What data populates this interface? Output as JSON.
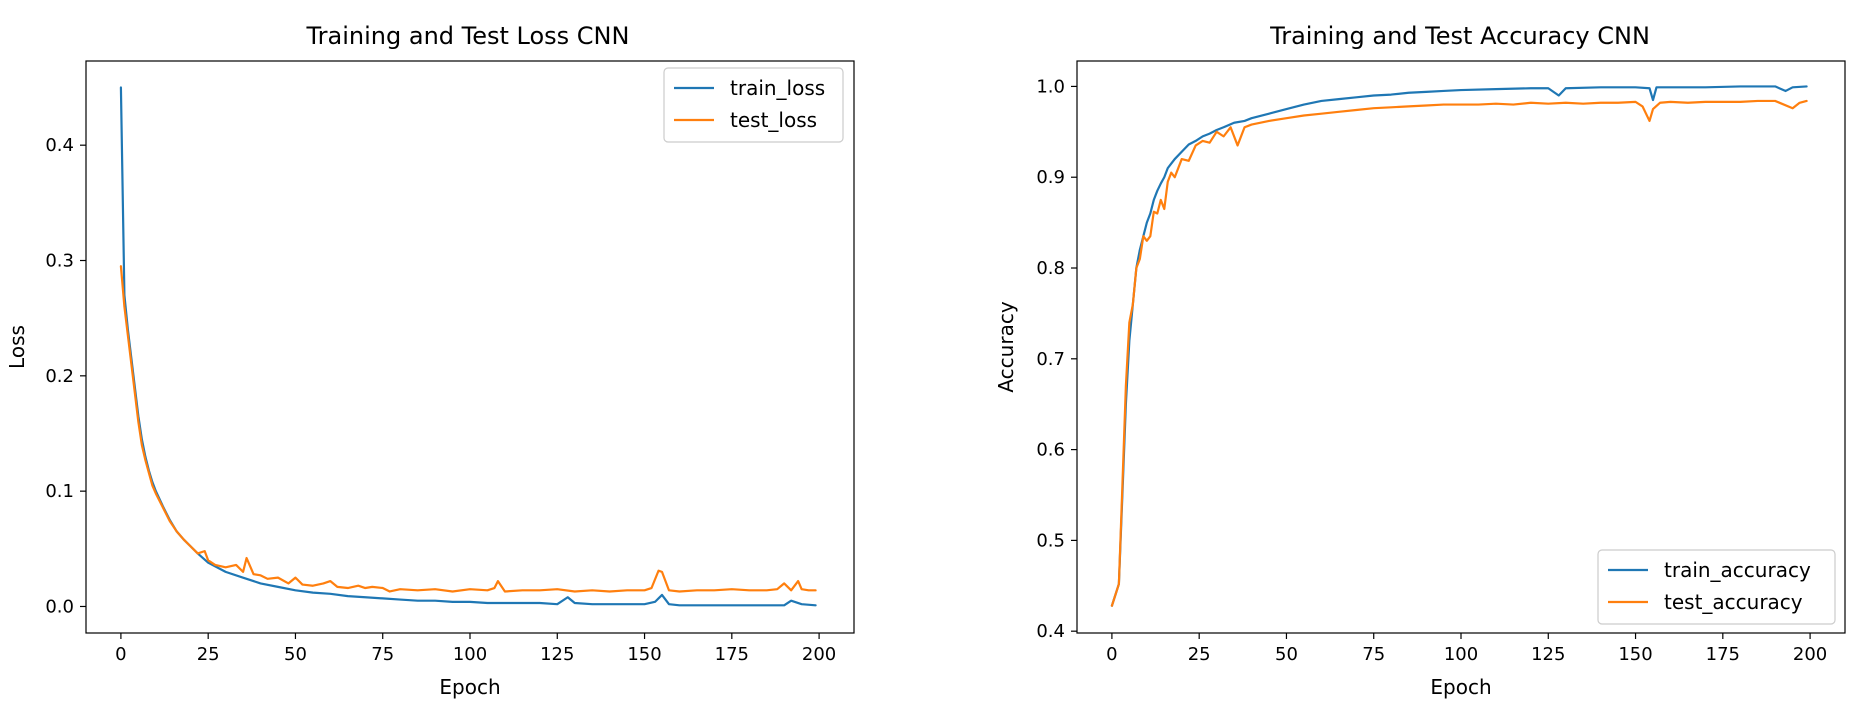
{
  "chart_data": [
    {
      "type": "line",
      "title": "Training and Test Loss CNN",
      "xlabel": "Epoch",
      "ylabel": "Loss",
      "xlim": [
        -10,
        210
      ],
      "ylim": [
        -0.023,
        0.473
      ],
      "xticks": [
        0,
        25,
        50,
        75,
        100,
        125,
        150,
        175,
        200
      ],
      "xtick_labels": [
        "0",
        "25",
        "50",
        "75",
        "100",
        "125",
        "150",
        "175",
        "200"
      ],
      "yticks": [
        0.0,
        0.1,
        0.2,
        0.3,
        0.4
      ],
      "ytick_labels": [
        "0.0",
        "0.1",
        "0.2",
        "0.3",
        "0.4"
      ],
      "grid": false,
      "legend_position": "upper-right",
      "series": [
        {
          "name": "train_loss",
          "color": "#1f77b4",
          "x": [
            0,
            1,
            2,
            3,
            4,
            5,
            6,
            7,
            8,
            9,
            10,
            12,
            14,
            16,
            18,
            20,
            22,
            25,
            30,
            35,
            40,
            45,
            50,
            55,
            60,
            65,
            70,
            75,
            80,
            85,
            90,
            95,
            100,
            105,
            110,
            115,
            120,
            125,
            128,
            130,
            135,
            140,
            145,
            150,
            153,
            155,
            157,
            160,
            165,
            170,
            175,
            180,
            185,
            190,
            192,
            195,
            199
          ],
          "values": [
            0.45,
            0.27,
            0.24,
            0.215,
            0.19,
            0.165,
            0.145,
            0.13,
            0.118,
            0.108,
            0.1,
            0.087,
            0.075,
            0.065,
            0.058,
            0.052,
            0.046,
            0.038,
            0.03,
            0.025,
            0.02,
            0.017,
            0.014,
            0.012,
            0.011,
            0.009,
            0.008,
            0.007,
            0.006,
            0.005,
            0.005,
            0.004,
            0.004,
            0.003,
            0.003,
            0.003,
            0.003,
            0.002,
            0.008,
            0.003,
            0.002,
            0.002,
            0.002,
            0.002,
            0.004,
            0.01,
            0.002,
            0.001,
            0.001,
            0.001,
            0.001,
            0.001,
            0.001,
            0.001,
            0.005,
            0.002,
            0.001
          ]
        },
        {
          "name": "test_loss",
          "color": "#ff7f0e",
          "x": [
            0,
            1,
            2,
            3,
            4,
            5,
            6,
            7,
            8,
            9,
            10,
            12,
            14,
            16,
            18,
            20,
            22,
            24,
            25,
            27,
            30,
            33,
            35,
            36,
            38,
            40,
            42,
            45,
            48,
            50,
            52,
            55,
            58,
            60,
            62,
            65,
            68,
            70,
            72,
            75,
            77,
            80,
            85,
            90,
            95,
            100,
            105,
            107,
            108,
            110,
            115,
            120,
            125,
            130,
            135,
            140,
            145,
            150,
            152,
            154,
            155,
            157,
            160,
            165,
            170,
            175,
            180,
            185,
            188,
            190,
            192,
            194,
            195,
            197,
            199
          ],
          "values": [
            0.295,
            0.26,
            0.235,
            0.21,
            0.185,
            0.16,
            0.14,
            0.127,
            0.116,
            0.105,
            0.098,
            0.086,
            0.074,
            0.065,
            0.058,
            0.052,
            0.046,
            0.048,
            0.04,
            0.036,
            0.034,
            0.036,
            0.03,
            0.042,
            0.028,
            0.027,
            0.024,
            0.025,
            0.02,
            0.025,
            0.019,
            0.018,
            0.02,
            0.022,
            0.017,
            0.016,
            0.018,
            0.016,
            0.017,
            0.016,
            0.013,
            0.015,
            0.014,
            0.015,
            0.013,
            0.015,
            0.014,
            0.016,
            0.022,
            0.013,
            0.014,
            0.014,
            0.015,
            0.013,
            0.014,
            0.013,
            0.014,
            0.014,
            0.016,
            0.031,
            0.03,
            0.014,
            0.013,
            0.014,
            0.014,
            0.015,
            0.014,
            0.014,
            0.015,
            0.02,
            0.014,
            0.022,
            0.015,
            0.014,
            0.014
          ]
        }
      ]
    },
    {
      "type": "line",
      "title": "Training and Test Accuracy CNN",
      "xlabel": "Epoch",
      "ylabel": "Accuracy",
      "xlim": [
        -10,
        210
      ],
      "ylim": [
        0.398,
        1.028
      ],
      "xticks": [
        0,
        25,
        50,
        75,
        100,
        125,
        150,
        175,
        200
      ],
      "xtick_labels": [
        "0",
        "25",
        "50",
        "75",
        "100",
        "125",
        "150",
        "175",
        "200"
      ],
      "yticks": [
        0.4,
        0.5,
        0.6,
        0.7,
        0.8,
        0.9,
        1.0
      ],
      "ytick_labels": [
        "0.4",
        "0.5",
        "0.6",
        "0.7",
        "0.8",
        "0.9",
        "1.0"
      ],
      "grid": false,
      "legend_position": "lower-right",
      "series": [
        {
          "name": "train_accuracy",
          "color": "#1f77b4",
          "x": [
            0,
            1,
            2,
            3,
            4,
            5,
            6,
            7,
            8,
            9,
            10,
            11,
            12,
            13,
            14,
            15,
            16,
            17,
            18,
            20,
            22,
            24,
            26,
            28,
            30,
            32,
            35,
            38,
            40,
            45,
            50,
            55,
            60,
            65,
            70,
            75,
            80,
            85,
            90,
            95,
            100,
            110,
            120,
            125,
            128,
            130,
            140,
            150,
            154,
            155,
            156,
            160,
            170,
            180,
            190,
            193,
            195,
            199
          ],
          "values": [
            0.428,
            0.44,
            0.452,
            0.55,
            0.65,
            0.72,
            0.76,
            0.8,
            0.82,
            0.835,
            0.85,
            0.86,
            0.875,
            0.885,
            0.893,
            0.9,
            0.91,
            0.915,
            0.92,
            0.928,
            0.936,
            0.94,
            0.945,
            0.948,
            0.952,
            0.955,
            0.96,
            0.962,
            0.965,
            0.97,
            0.975,
            0.98,
            0.984,
            0.986,
            0.988,
            0.99,
            0.991,
            0.993,
            0.994,
            0.995,
            0.996,
            0.997,
            0.998,
            0.998,
            0.99,
            0.998,
            0.999,
            0.999,
            0.998,
            0.985,
            0.999,
            0.999,
            0.999,
            1.0,
            1.0,
            0.995,
            0.999,
            1.0
          ]
        },
        {
          "name": "test_accuracy",
          "color": "#ff7f0e",
          "x": [
            0,
            1,
            2,
            3,
            4,
            5,
            6,
            7,
            8,
            9,
            10,
            11,
            12,
            13,
            14,
            15,
            16,
            17,
            18,
            20,
            22,
            24,
            26,
            28,
            30,
            32,
            34,
            36,
            38,
            40,
            45,
            50,
            55,
            60,
            65,
            70,
            75,
            80,
            85,
            90,
            95,
            100,
            105,
            110,
            115,
            120,
            125,
            130,
            135,
            140,
            145,
            150,
            152,
            154,
            155,
            157,
            160,
            165,
            170,
            175,
            180,
            185,
            190,
            195,
            197,
            199
          ],
          "values": [
            0.428,
            0.44,
            0.452,
            0.56,
            0.67,
            0.74,
            0.76,
            0.8,
            0.81,
            0.835,
            0.83,
            0.835,
            0.862,
            0.86,
            0.875,
            0.865,
            0.895,
            0.905,
            0.9,
            0.92,
            0.918,
            0.935,
            0.94,
            0.938,
            0.95,
            0.945,
            0.955,
            0.935,
            0.955,
            0.958,
            0.962,
            0.965,
            0.968,
            0.97,
            0.972,
            0.974,
            0.976,
            0.977,
            0.978,
            0.979,
            0.98,
            0.98,
            0.98,
            0.981,
            0.98,
            0.982,
            0.981,
            0.982,
            0.981,
            0.982,
            0.982,
            0.983,
            0.978,
            0.962,
            0.975,
            0.982,
            0.983,
            0.982,
            0.983,
            0.983,
            0.983,
            0.984,
            0.984,
            0.976,
            0.982,
            0.984
          ]
        }
      ]
    }
  ]
}
